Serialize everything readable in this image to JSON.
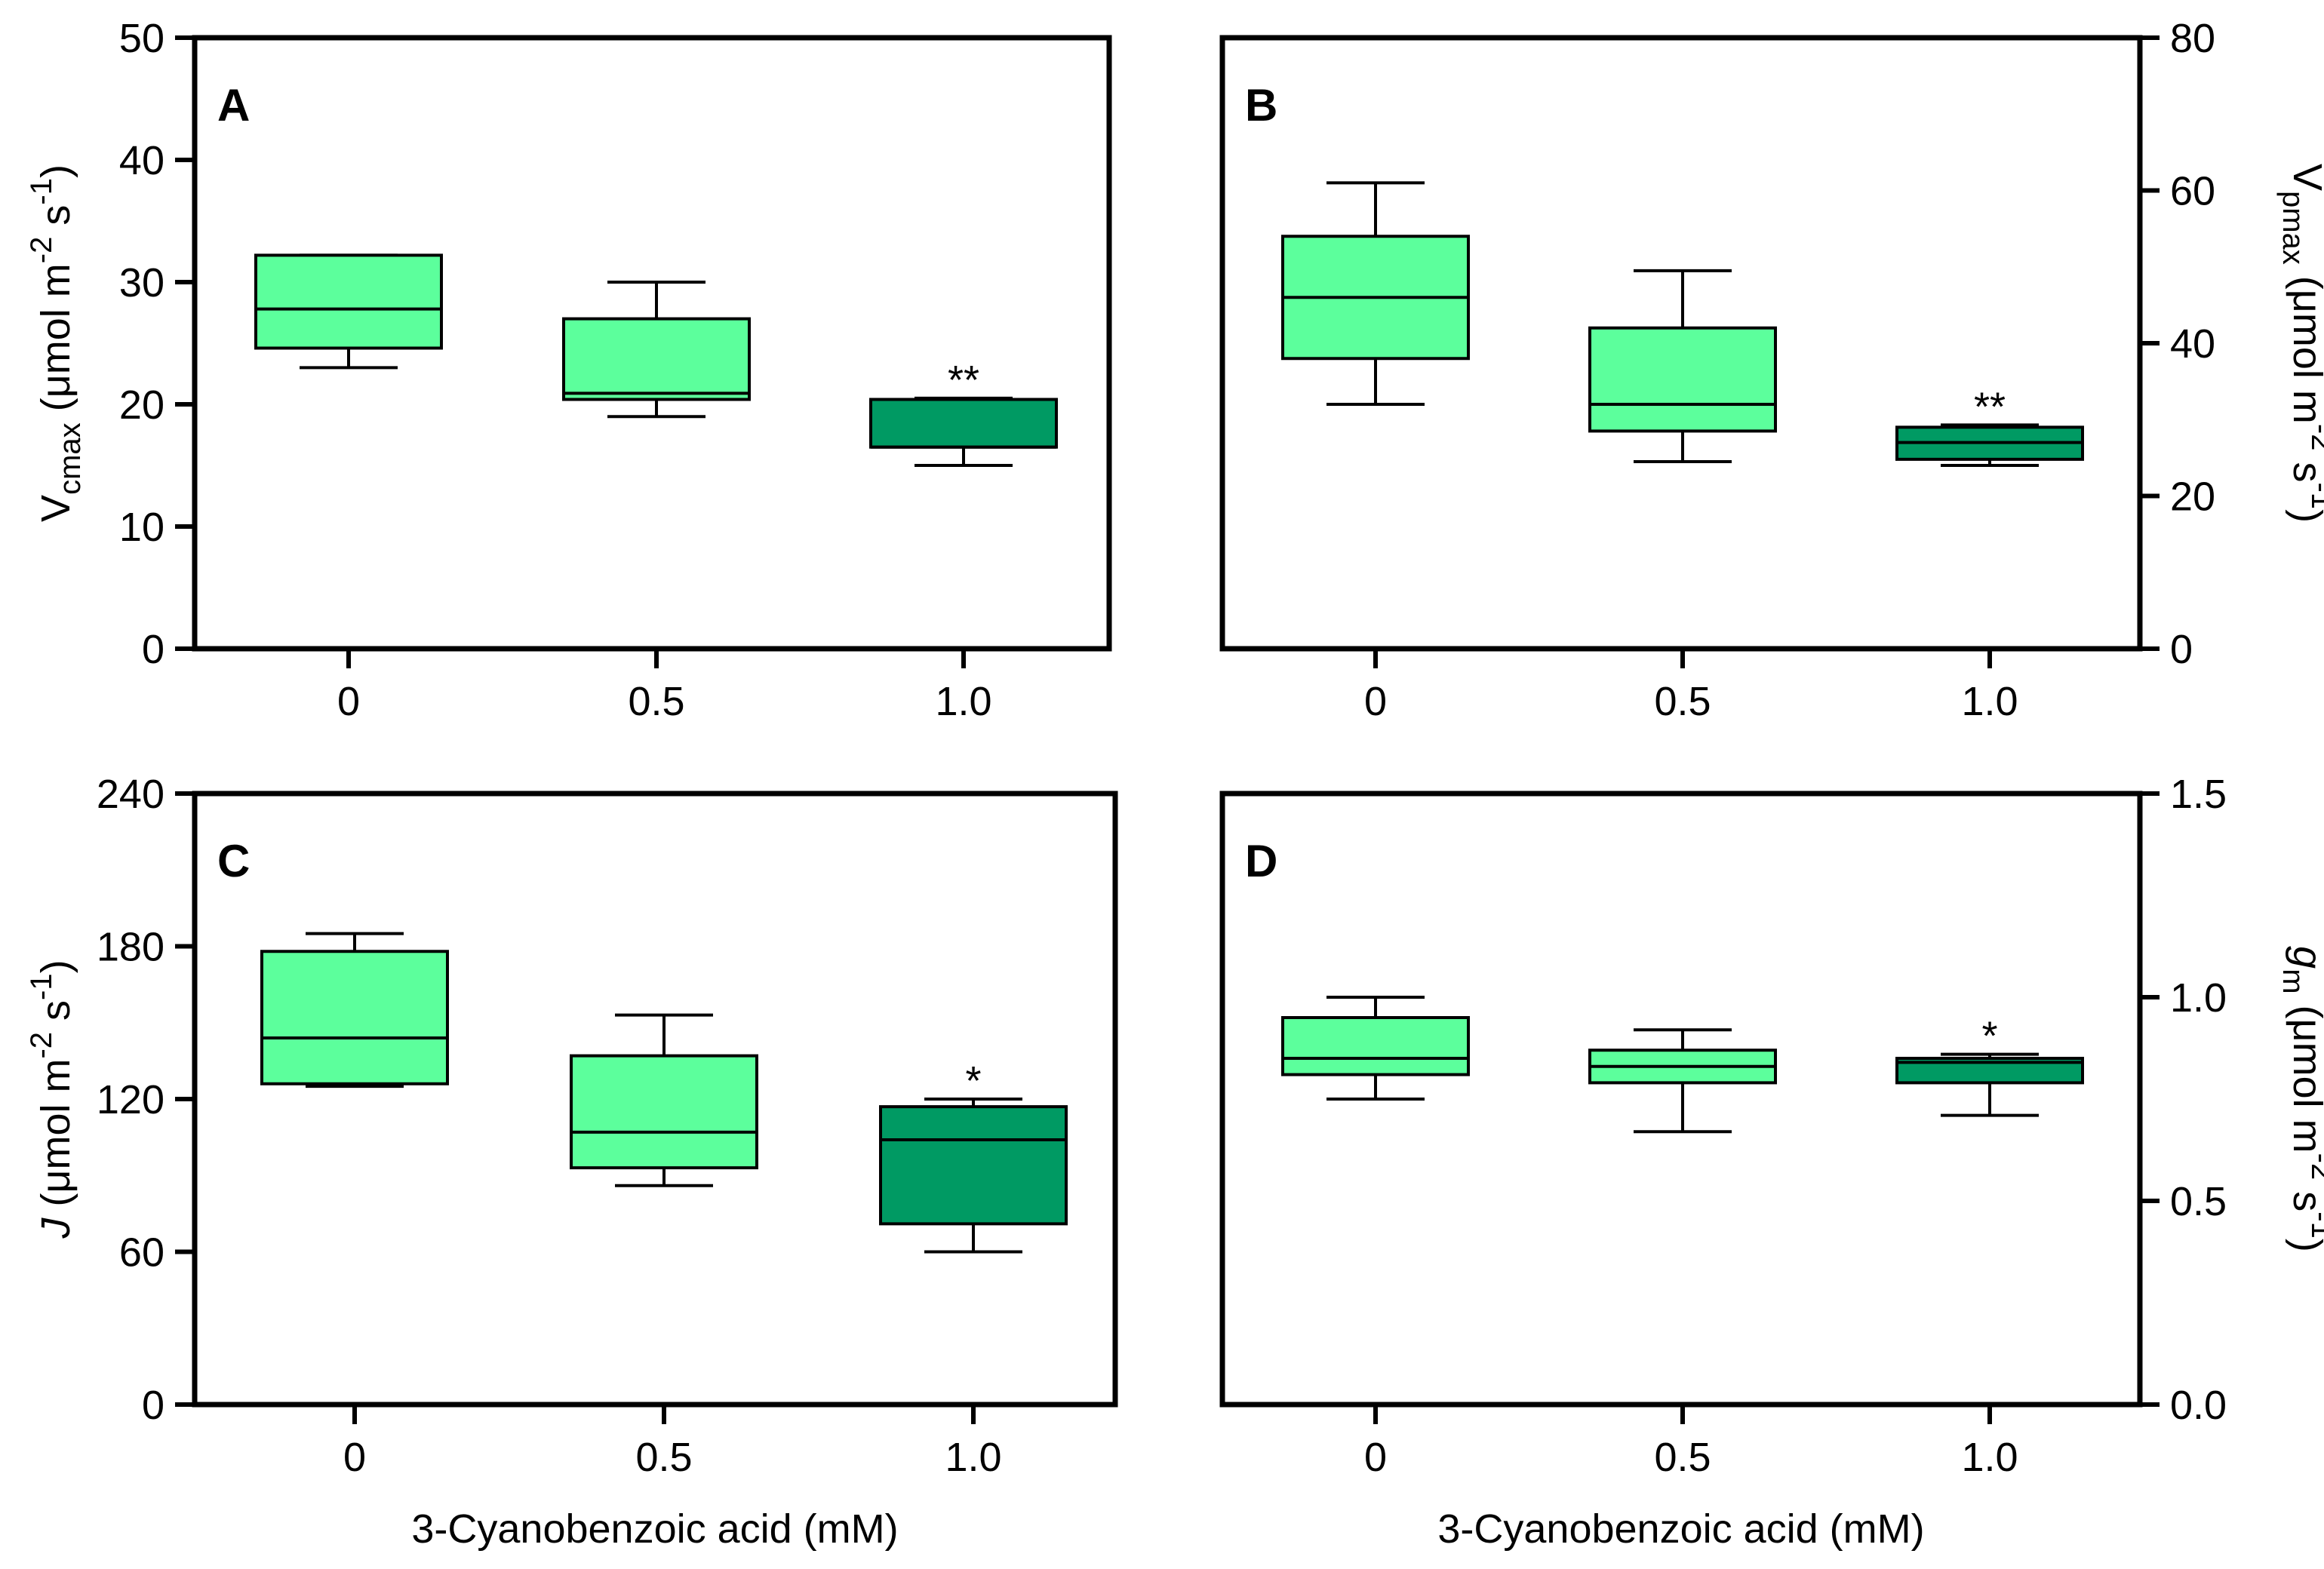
{
  "chart_data": [
    {
      "type": "box",
      "panel_label": "A",
      "ylabel": {
        "main": "V",
        "sub": "cmax",
        "rest1": " (μmol m",
        "sup1": "-2",
        "rest2": " s",
        "sup2": "-1",
        "rest3": ")"
      },
      "yaxis_side": "left",
      "ylim": [
        0,
        50
      ],
      "yticks": [
        "0",
        "10",
        "20",
        "30",
        "40",
        "50"
      ],
      "categories": [
        "0",
        "0.5",
        "1.0"
      ],
      "xlabel": "",
      "boxes": [
        {
          "category": "0",
          "min": 23,
          "q1": 24.6,
          "median": 27.8,
          "q3": 32.2,
          "max": 32.2,
          "shade": "light",
          "annotation": ""
        },
        {
          "category": "0.5",
          "min": 19,
          "q1": 20.4,
          "median": 20.9,
          "q3": 27,
          "max": 30,
          "shade": "light",
          "annotation": ""
        },
        {
          "category": "1.0",
          "min": 15,
          "q1": 16.5,
          "median": 16.5,
          "q3": 20.4,
          "max": 20.5,
          "shade": "dark",
          "annotation": "**"
        }
      ]
    },
    {
      "type": "box",
      "panel_label": "B",
      "ylabel": {
        "main": "V",
        "sub": "pmax",
        "rest1": " (μmol m",
        "sup1": "-2",
        "rest2": " s",
        "sup2": "-1",
        "rest3": ")"
      },
      "yaxis_side": "right",
      "ylim": [
        0,
        80
      ],
      "yticks": [
        "0",
        "20",
        "40",
        "60",
        "80"
      ],
      "categories": [
        "0",
        "0.5",
        "1.0"
      ],
      "xlabel": "",
      "boxes": [
        {
          "category": "0",
          "min": 32,
          "q1": 38,
          "median": 46,
          "q3": 54,
          "max": 61,
          "shade": "light",
          "annotation": ""
        },
        {
          "category": "0.5",
          "min": 24.5,
          "q1": 28.5,
          "median": 32,
          "q3": 42,
          "max": 49.5,
          "shade": "light",
          "annotation": ""
        },
        {
          "category": "1.0",
          "min": 24,
          "q1": 24.8,
          "median": 27,
          "q3": 29,
          "max": 29.3,
          "shade": "dark",
          "annotation": "**"
        }
      ]
    },
    {
      "type": "box",
      "panel_label": "C",
      "ylabel": {
        "main": "J",
        "sub": "",
        "rest1": " (μmol m",
        "sup1": "-2",
        "rest2": " s",
        "sup2": "-1",
        "rest3": ")"
      },
      "yaxis_side": "left",
      "ylim": [
        0,
        240
      ],
      "yticks": [
        "0",
        "60",
        "120",
        "180",
        "240"
      ],
      "categories": [
        "0",
        "0.5",
        "1.0"
      ],
      "xlabel": "3-Cyanobenzoic acid (mM)",
      "boxes": [
        {
          "category": "0",
          "min": 125,
          "q1": 126,
          "median": 144,
          "q3": 178,
          "max": 185,
          "shade": "light",
          "annotation": ""
        },
        {
          "category": "0.5",
          "min": 86,
          "q1": 93,
          "median": 107,
          "q3": 137,
          "max": 153,
          "shade": "light",
          "annotation": ""
        },
        {
          "category": "1.0",
          "min": 60,
          "q1": 71,
          "median": 104,
          "q3": 117,
          "max": 120,
          "shade": "dark",
          "annotation": "*"
        }
      ]
    },
    {
      "type": "box",
      "panel_label": "D",
      "ylabel": {
        "main": "g",
        "sub": "m",
        "rest1": " (μmol m",
        "sup1": "-2",
        "rest2": " s",
        "sup2": "-1",
        "rest3": ")"
      },
      "yaxis_side": "right",
      "ylim": [
        0,
        1.5
      ],
      "yticks": [
        "0.0",
        "0.5",
        "1.0",
        "1.5"
      ],
      "categories": [
        "0",
        "0.5",
        "1.0"
      ],
      "xlabel": "3-Cyanobenzoic acid (mM)",
      "boxes": [
        {
          "category": "0",
          "min": 0.75,
          "q1": 0.81,
          "median": 0.85,
          "q3": 0.95,
          "max": 1.0,
          "shade": "light",
          "annotation": ""
        },
        {
          "category": "0.5",
          "min": 0.67,
          "q1": 0.79,
          "median": 0.83,
          "q3": 0.87,
          "max": 0.92,
          "shade": "light",
          "annotation": ""
        },
        {
          "category": "1.0",
          "min": 0.71,
          "q1": 0.79,
          "median": 0.84,
          "q3": 0.85,
          "max": 0.86,
          "shade": "dark",
          "annotation": "*"
        }
      ]
    }
  ],
  "colors": {
    "light": "#5cff9c",
    "dark": "#009a63",
    "stroke": "#000000"
  }
}
